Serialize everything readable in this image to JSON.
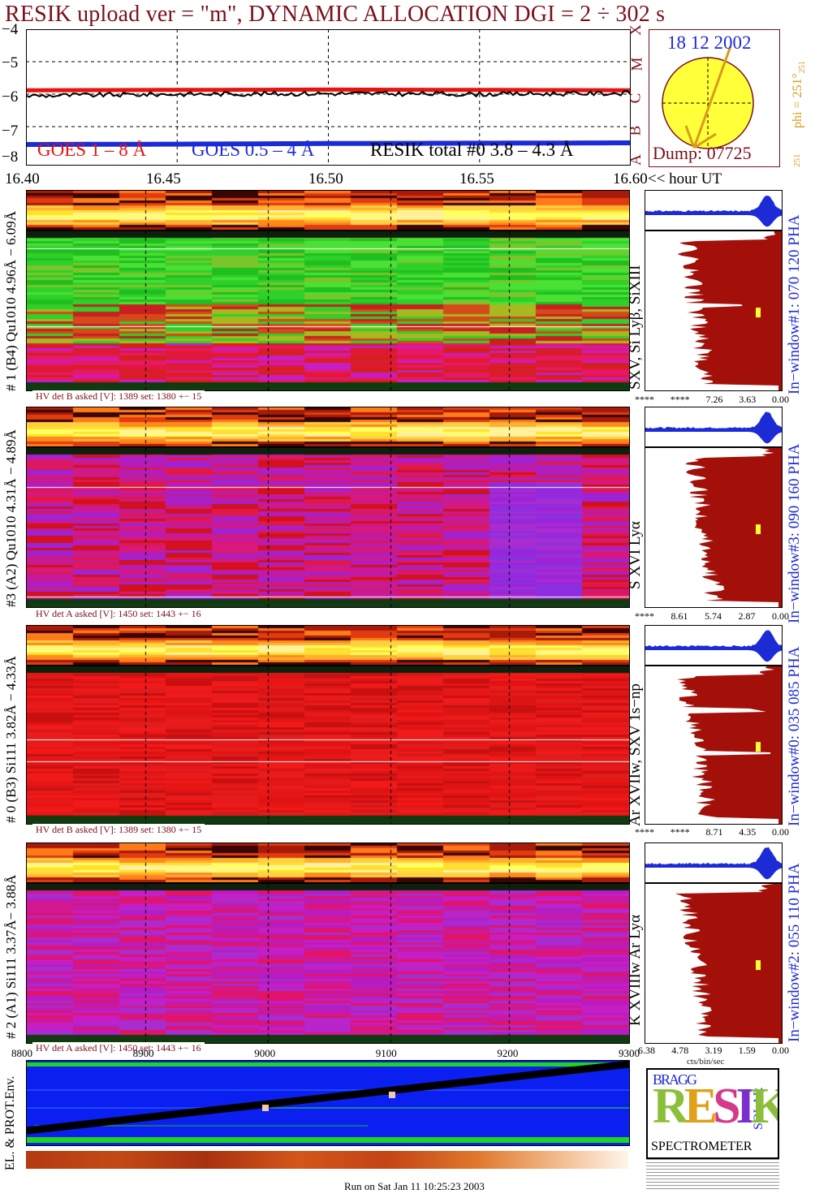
{
  "title": "RESIK upload ver = \"m\", DYNAMIC ALLOCATION  DGI =   2 ÷ 302 s",
  "goes": {
    "yticks": [
      "−4",
      "−5",
      "−6",
      "−7",
      "−8"
    ],
    "labels": {
      "goes1": "GOES 1 – 8 Å",
      "goes2": "GOES 0.5 – 4 Å",
      "resik": "RESIK total #0  3.8 – 4.3 Å"
    },
    "colors": {
      "goes1": "#e8130f",
      "goes2": "#1d2bd6",
      "resik": "#000000"
    }
  },
  "classes": [
    "X",
    "M",
    "C",
    "B",
    "A"
  ],
  "sun": {
    "date": "18 12 2002",
    "dump": "Dump: 07725",
    "phi": "phi = 251°",
    "phi_sub": "251",
    "phi_bottom": "251"
  },
  "time_axis": {
    "ticks": [
      "16.40",
      "16.45",
      "16.50",
      "16.55",
      "16.60"
    ],
    "unit": "<< hour UT"
  },
  "channels": [
    {
      "left": "# 1 (B4) Qu1010 4.96Å − 6.09Å",
      "lines": "SXV, Si Lyβ, SiXIII",
      "window": "In−window#1:  070 120 PHA",
      "hv": "HV det B asked [V]:  1389 set:  1380 +−   15",
      "hist_ticks": [
        "****",
        "****",
        "7.26",
        "3.63",
        "0.00"
      ]
    },
    {
      "left": "#3 (A2) Qu1010  4.31Å − 4.89Å",
      "lines": "S XVI Lyα",
      "window": "In−window#3:  090 160 PHA",
      "hv": "HV det A asked [V]:  1450 set:  1443 +−   16",
      "hist_ticks": [
        "****",
        "8.61",
        "5.74",
        "2.87",
        "0.00"
      ]
    },
    {
      "left": "# 0 (B3) Si111  3.82Å − 4.33Å",
      "lines": "Ar XVIIw,  SXV 1s−np",
      "window": "In−window#0:  035 085 PHA",
      "hv": "HV det B asked [V]:  1389 set:  1380 +−   15",
      "hist_ticks": [
        "****",
        "****",
        "8.71",
        "4.35",
        "0.00"
      ]
    },
    {
      "left": "# 2 (A1) Si111  3.37Å−  3.88Å",
      "lines": "K XVIIIw  Ar Lyα",
      "window": "In−window#2:  055 110 PHA",
      "hv": "HV det A asked [V]:  1450 set:  1443 +−   16",
      "hist_ticks": [
        "6.38",
        "4.78",
        "3.19",
        "1.59",
        "0.00"
      ]
    }
  ],
  "hist_unit": "cts/bin/sec",
  "env": {
    "label": "EL. & PROT.Env.",
    "ticks": [
      "8800",
      "8900",
      "9000",
      "9100",
      "9200",
      "9300"
    ]
  },
  "logo": {
    "letters": "RESIK",
    "bragg": "BRAGG",
    "solar": "SOLAR",
    "spectrometer": "SPECTROMETER"
  },
  "footer": "Run on Sat Jan 11 10:25:23 2003",
  "chart_data": {
    "type": "line",
    "title": "RESIK upload ver = \"m\", DYNAMIC ALLOCATION  DGI =   2 ÷ 302 s",
    "x": [
      16.4,
      16.45,
      16.5,
      16.55,
      16.6
    ],
    "xlabel": "<< hour UT",
    "ylim": [
      -8,
      -4
    ],
    "series": [
      {
        "name": "GOES 1 – 8 Å",
        "values": [
          -5.88,
          -5.87,
          -5.86,
          -5.87,
          -5.88
        ]
      },
      {
        "name": "GOES 0.5 – 4 Å",
        "values": [
          -7.55,
          -7.54,
          -7.52,
          -7.51,
          -7.5
        ]
      },
      {
        "name": "RESIK total #0  3.8 – 4.3 Å",
        "values": [
          -6.05,
          -6.0,
          -5.98,
          -6.0,
          -5.97
        ]
      }
    ]
  }
}
